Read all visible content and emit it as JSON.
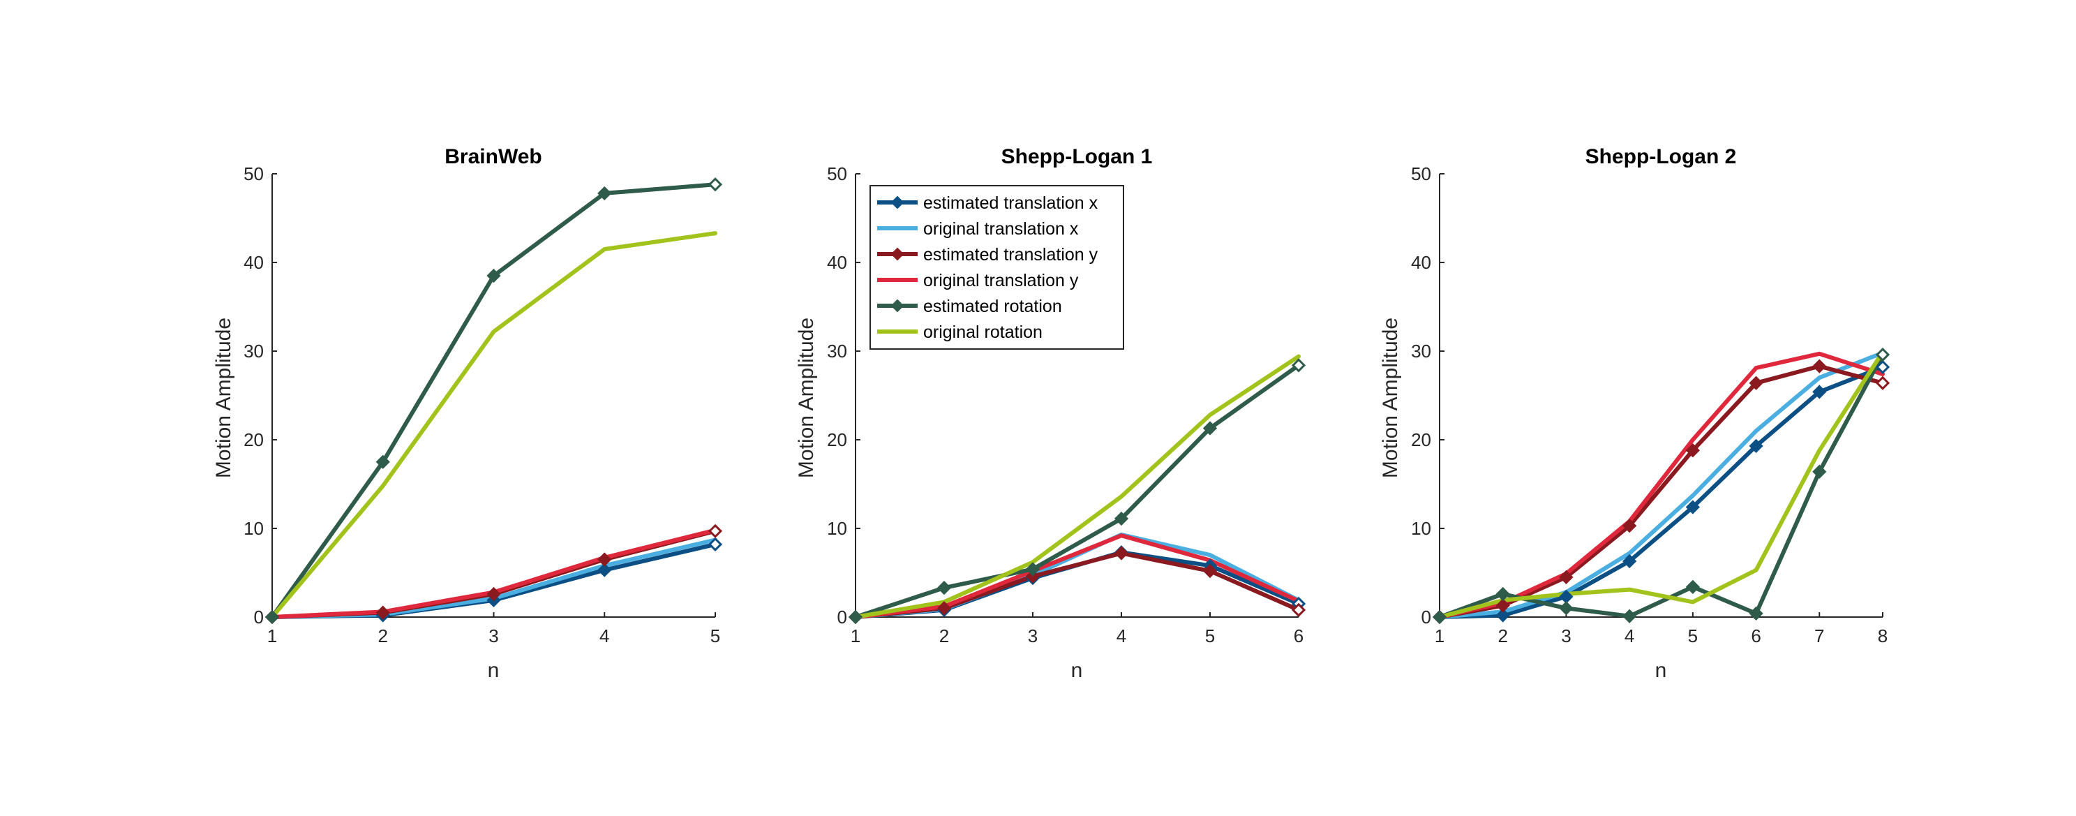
{
  "chart_data": [
    {
      "type": "line",
      "title": "BrainWeb",
      "xlabel": "n",
      "ylabel": "Motion Amplitude",
      "x": [
        1,
        2,
        3,
        4,
        5
      ],
      "xlim": [
        1,
        5
      ],
      "ylim": [
        0,
        50
      ],
      "xticks": [
        "1",
        "2",
        "3",
        "4",
        "5"
      ],
      "yticks": [
        "0",
        "10",
        "20",
        "30",
        "40",
        "50"
      ],
      "series": [
        {
          "name": "estimated translation x",
          "color": "#0b4f84",
          "marker": true,
          "values": [
            0,
            0.2,
            1.9,
            5.3,
            8.2
          ]
        },
        {
          "name": "original translation x",
          "color": "#4aaee0",
          "marker": false,
          "values": [
            0,
            0.3,
            2.1,
            5.8,
            8.7
          ]
        },
        {
          "name": "estimated translation y",
          "color": "#8a1a1f",
          "marker": true,
          "values": [
            0,
            0.5,
            2.6,
            6.5,
            9.7
          ]
        },
        {
          "name": "original translation y",
          "color": "#e0283c",
          "marker": false,
          "values": [
            0,
            0.6,
            2.8,
            6.7,
            9.8
          ]
        },
        {
          "name": "estimated rotation",
          "color": "#2f5b4a",
          "marker": true,
          "values": [
            0,
            17.5,
            38.5,
            47.8,
            48.8
          ]
        },
        {
          "name": "original rotation",
          "color": "#a2c21c",
          "marker": false,
          "values": [
            0,
            14.8,
            32.2,
            41.5,
            43.3
          ]
        }
      ]
    },
    {
      "type": "line",
      "title": "Shepp-Logan 1",
      "xlabel": "n",
      "ylabel": "Motion Amplitude",
      "x": [
        1,
        2,
        3,
        4,
        5,
        6
      ],
      "xlim": [
        1,
        6
      ],
      "ylim": [
        0,
        50
      ],
      "xticks": [
        "1",
        "2",
        "3",
        "4",
        "5",
        "6"
      ],
      "yticks": [
        "0",
        "10",
        "20",
        "30",
        "40",
        "50"
      ],
      "legend": "top-left",
      "series": [
        {
          "name": "estimated translation x",
          "color": "#0b4f84",
          "marker": true,
          "values": [
            0,
            0.8,
            4.4,
            7.3,
            5.8,
            1.5
          ]
        },
        {
          "name": "original translation x",
          "color": "#4aaee0",
          "marker": false,
          "values": [
            0,
            0.9,
            4.7,
            9.3,
            7.0,
            1.9
          ]
        },
        {
          "name": "estimated translation y",
          "color": "#8a1a1f",
          "marker": true,
          "values": [
            0,
            1.0,
            4.6,
            7.2,
            5.2,
            0.8
          ]
        },
        {
          "name": "original translation y",
          "color": "#e0283c",
          "marker": false,
          "values": [
            0,
            1.2,
            5.2,
            9.2,
            6.4,
            1.8
          ]
        },
        {
          "name": "estimated rotation",
          "color": "#2f5b4a",
          "marker": true,
          "values": [
            0,
            3.3,
            5.4,
            11.1,
            21.3,
            28.4
          ]
        },
        {
          "name": "original rotation",
          "color": "#a2c21c",
          "marker": false,
          "values": [
            0,
            1.7,
            6.2,
            13.6,
            22.8,
            29.4
          ]
        }
      ]
    },
    {
      "type": "line",
      "title": "Shepp-Logan 2",
      "xlabel": "n",
      "ylabel": "Motion Amplitude",
      "x": [
        1,
        2,
        3,
        4,
        5,
        6,
        7,
        8
      ],
      "xlim": [
        1,
        8
      ],
      "ylim": [
        0,
        50
      ],
      "xticks": [
        "1",
        "2",
        "3",
        "4",
        "5",
        "6",
        "7",
        "8"
      ],
      "yticks": [
        "0",
        "10",
        "20",
        "30",
        "40",
        "50"
      ],
      "series": [
        {
          "name": "estimated translation x",
          "color": "#0b4f84",
          "marker": true,
          "values": [
            0,
            0.2,
            2.3,
            6.3,
            12.4,
            19.3,
            25.4,
            28.2
          ]
        },
        {
          "name": "original translation x",
          "color": "#4aaee0",
          "marker": false,
          "values": [
            0,
            0.6,
            2.8,
            7.2,
            13.7,
            21.0,
            27.0,
            29.8
          ]
        },
        {
          "name": "estimated translation y",
          "color": "#8a1a1f",
          "marker": true,
          "values": [
            0,
            1.3,
            4.5,
            10.3,
            18.8,
            26.4,
            28.3,
            26.4
          ]
        },
        {
          "name": "original translation y",
          "color": "#e0283c",
          "marker": false,
          "values": [
            0,
            1.6,
            4.9,
            10.8,
            20.0,
            28.1,
            29.7,
            27.4
          ]
        },
        {
          "name": "estimated rotation",
          "color": "#2f5b4a",
          "marker": true,
          "values": [
            0,
            2.6,
            1.0,
            0.1,
            3.4,
            0.4,
            16.4,
            29.6
          ]
        },
        {
          "name": "original rotation",
          "color": "#a2c21c",
          "marker": false,
          "values": [
            0,
            1.9,
            2.6,
            3.1,
            1.7,
            5.3,
            18.8,
            29.9
          ]
        }
      ]
    }
  ]
}
